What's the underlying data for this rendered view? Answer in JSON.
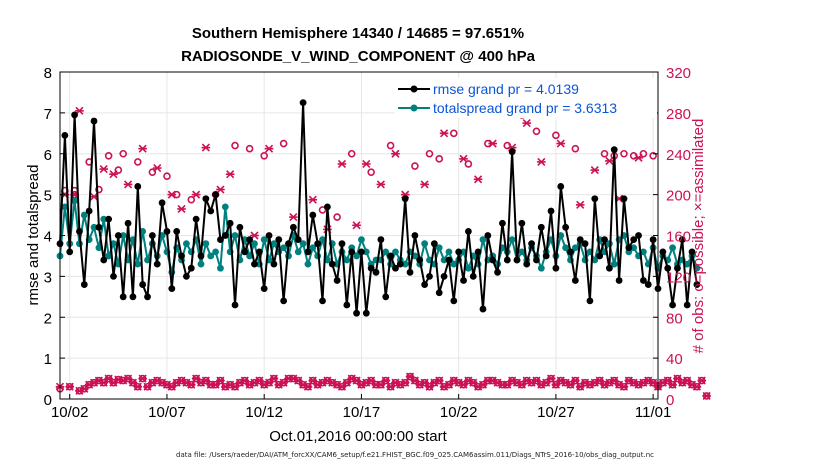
{
  "chart_data": {
    "type": "line",
    "title_line1": "Southern Hemisphere 14340 / 14685 = 97.651%",
    "title_line2": "RADIOSONDE_V_WIND_COMPONENT @ 400 hPa",
    "xlabel": "Oct.01,2016 00:00:00 start",
    "ylabel_left": "rmse and totalspread",
    "ylabel_right": "# of obs: o=possible; ×=assimilated",
    "ylim_left": [
      0,
      8
    ],
    "ylim_right": [
      0,
      320
    ],
    "yticks_left": [
      "0",
      "1",
      "2",
      "3",
      "4",
      "5",
      "6",
      "7",
      "8"
    ],
    "yticks_right": [
      "0",
      "40",
      "80",
      "120",
      "160",
      "200",
      "240",
      "280",
      "320"
    ],
    "xticks": [
      {
        "day": 2,
        "label": "10/02"
      },
      {
        "day": 7,
        "label": "10/07"
      },
      {
        "day": 12,
        "label": "10/12"
      },
      {
        "day": 17,
        "label": "10/17"
      },
      {
        "day": 22,
        "label": "10/22"
      },
      {
        "day": 27,
        "label": "10/27"
      },
      {
        "day": 32,
        "label": "11/01"
      }
    ],
    "xlim_days": [
      1.5,
      32.25
    ],
    "x_start_day": 1.5,
    "x_step_days": 0.25,
    "grid": true,
    "legend_position": "top-right",
    "series": [
      {
        "name": "rmse",
        "legend": "rmse grand pr = 4.0139",
        "color": "#000000",
        "values": [
          3.8,
          6.45,
          3.6,
          6.95,
          4.1,
          2.8,
          4.6,
          6.8,
          4.2,
          3.4,
          4.4,
          3.0,
          4.0,
          2.5,
          4.3,
          2.5,
          5.2,
          2.8,
          2.5,
          4.0,
          3.3,
          4.8,
          4.1,
          2.7,
          4.1,
          3.5,
          3.0,
          3.2,
          4.4,
          3.5,
          4.9,
          4.6,
          5.0,
          3.9,
          4.0,
          4.3,
          2.3,
          4.2,
          3.6,
          3.9,
          3.3,
          3.6,
          2.7,
          4.0,
          3.3,
          3.9,
          2.4,
          3.8,
          4.2,
          3.9,
          7.25,
          3.6,
          4.5,
          3.8,
          2.4,
          4.7,
          3.3,
          2.9,
          3.8,
          2.3,
          3.6,
          2.1,
          3.6,
          2.1,
          3.2,
          3.1,
          3.9,
          2.5,
          3.5,
          3.2,
          3.3,
          4.9,
          3.1,
          4.0,
          3.4,
          2.8,
          3.0,
          3.8,
          2.6,
          3.0,
          3.4,
          2.4,
          3.6,
          2.9,
          4.1,
          3.0,
          3.6,
          2.2,
          4.0,
          3.4,
          3.1,
          4.3,
          3.4,
          6.05,
          3.4,
          4.3,
          3.3,
          3.8,
          3.4,
          4.2,
          3.5,
          4.6,
          3.2,
          5.2,
          4.2,
          3.6,
          2.9,
          3.9,
          3.8,
          2.4,
          4.9,
          3.5,
          3.9,
          3.2,
          6.1,
          2.9,
          4.9,
          3.7,
          3.9,
          4.0,
          2.9,
          2.8,
          3.9,
          2.7,
          3.6,
          3.2,
          2.3,
          3.2,
          3.9,
          2.3,
          3.6,
          2.8
        ]
      },
      {
        "name": "totalspread",
        "legend": "totalspread grand pr = 3.6313",
        "color": "#00817f",
        "values": [
          3.5,
          4.7,
          3.8,
          4.85,
          3.8,
          4.5,
          3.9,
          4.2,
          3.7,
          4.4,
          3.5,
          3.8,
          3.3,
          4.0,
          3.4,
          3.9,
          3.3,
          4.1,
          3.4,
          3.8,
          3.5,
          4.0,
          3.6,
          3.1,
          3.7,
          3.4,
          3.8,
          3.6,
          3.9,
          3.3,
          3.8,
          3.5,
          3.6,
          3.2,
          4.7,
          3.6,
          4.0,
          3.4,
          3.9,
          3.5,
          3.8,
          3.3,
          3.9,
          3.4,
          3.8,
          3.6,
          3.7,
          3.5,
          4.0,
          3.6,
          3.8,
          3.3,
          3.7,
          3.5,
          3.9,
          3.4,
          3.8,
          3.3,
          3.6,
          3.4,
          3.7,
          3.5,
          3.9,
          3.6,
          3.3,
          3.4,
          3.4,
          3.6,
          3.3,
          3.6,
          3.4,
          3.3,
          3.6,
          3.5,
          3.3,
          3.8,
          3.4,
          3.3,
          3.7,
          3.4,
          3.6,
          3.3,
          3.4,
          3.6,
          3.2,
          3.5,
          3.3,
          3.9,
          3.4,
          3.5,
          3.3,
          3.7,
          3.6,
          3.9,
          3.4,
          3.6,
          3.4,
          3.7,
          3.5,
          3.2,
          3.6,
          3.9,
          3.5,
          4.0,
          3.7,
          3.4,
          3.7,
          3.8,
          3.4,
          3.6,
          3.4,
          3.9,
          3.6,
          3.8,
          3.3,
          3.9,
          4.0,
          3.6,
          3.7,
          3.5,
          3.6,
          3.3,
          3.7,
          3.2,
          3.5,
          3.4,
          3.7,
          3.3,
          3.4,
          3.3,
          3.5,
          3.2
        ]
      },
      {
        "name": "possible",
        "axis": "right",
        "marker": "o",
        "color": "#cc1155",
        "values": [
          10,
          204,
          12,
          204,
          8,
          10,
          14,
          16,
          18,
          16,
          20,
          16,
          19,
          18,
          20,
          16,
          12,
          20,
          12,
          16,
          18,
          16,
          14,
          12,
          16,
          18,
          16,
          14,
          20,
          16,
          18,
          14,
          14,
          18,
          12,
          14,
          12,
          16,
          18,
          14,
          16,
          18,
          14,
          16,
          20,
          14,
          16,
          20,
          20,
          18,
          14,
          12,
          18,
          14,
          16,
          18,
          16,
          14,
          12,
          16,
          20,
          18,
          14,
          16,
          18,
          14,
          14,
          18,
          12,
          16,
          14,
          16,
          22,
          18,
          14,
          16,
          12,
          16,
          18,
          12,
          14,
          18,
          16,
          14,
          18,
          16,
          12,
          14,
          18,
          18,
          16,
          14,
          14,
          18,
          16,
          14,
          18,
          16,
          18,
          14,
          16,
          20,
          14,
          18,
          16,
          14,
          18,
          12,
          16,
          14,
          16,
          18,
          14,
          16,
          18,
          14,
          12,
          18,
          16,
          14,
          16,
          18,
          16,
          12,
          16,
          18,
          14,
          20,
          16,
          18,
          14,
          12,
          18,
          3
        ]
      },
      {
        "name": "assimilated",
        "axis": "right",
        "marker": "x",
        "color": "#cc1155",
        "values": [
          12,
          200,
          12,
          200,
          8,
          10,
          14,
          16,
          18,
          16,
          20,
          16,
          19,
          18,
          20,
          16,
          12,
          20,
          12,
          16,
          18,
          16,
          14,
          12,
          16,
          18,
          16,
          14,
          20,
          16,
          18,
          14,
          14,
          18,
          12,
          14,
          12,
          16,
          18,
          14,
          16,
          18,
          14,
          16,
          20,
          14,
          16,
          20,
          20,
          18,
          14,
          12,
          18,
          14,
          16,
          18,
          16,
          14,
          12,
          16,
          20,
          18,
          14,
          16,
          18,
          14,
          14,
          18,
          12,
          16,
          14,
          16,
          22,
          18,
          14,
          16,
          12,
          16,
          18,
          12,
          14,
          18,
          16,
          14,
          18,
          16,
          12,
          14,
          18,
          18,
          16,
          14,
          14,
          18,
          16,
          14,
          18,
          16,
          18,
          14,
          16,
          20,
          14,
          18,
          16,
          14,
          18,
          12,
          16,
          14,
          16,
          18,
          14,
          16,
          18,
          14,
          12,
          18,
          16,
          14,
          16,
          18,
          16,
          12,
          16,
          18,
          14,
          20,
          16,
          18,
          14,
          12,
          18,
          3
        ]
      },
      {
        "name": "possible_high",
        "axis": "right",
        "marker": "o",
        "color": "#cc1155",
        "days": [
          2.25,
          3.0,
          3.5,
          4.0,
          4.5,
          4.75,
          5.5,
          6.25,
          7.0,
          7.5,
          8.25,
          9.5,
          10.5,
          11.25,
          12.0,
          13.0,
          15.0,
          15.75,
          16.5,
          17.5,
          18.5,
          19.75,
          20.5,
          21.0,
          21.75,
          22.5,
          23.5,
          24.5,
          25.25,
          26.0,
          27.0,
          28.0,
          29.5,
          30.0,
          30.5,
          31.0,
          31.5,
          32.0
        ],
        "values": [
          200,
          232,
          205,
          238,
          224,
          240,
          232,
          222,
          218,
          200,
          195,
          200,
          248,
          245,
          238,
          250,
          185,
          178,
          240,
          222,
          248,
          228,
          240,
          235,
          260,
          230,
          250,
          248,
          278,
          262,
          258,
          245,
          240,
          238,
          240,
          238,
          240,
          238
        ]
      },
      {
        "name": "assimilated_high",
        "axis": "right",
        "marker": "x",
        "color": "#cc1155",
        "days": [
          2.5,
          3.25,
          3.75,
          4.25,
          5.0,
          5.75,
          6.5,
          7.25,
          7.75,
          8.5,
          9.0,
          9.75,
          10.25,
          11.5,
          12.25,
          13.5,
          14.5,
          15.25,
          16.0,
          16.75,
          17.25,
          18.0,
          18.75,
          19.25,
          20.25,
          21.25,
          22.25,
          23.0,
          23.75,
          24.75,
          25.5,
          26.25,
          27.25,
          28.25,
          29.0,
          29.75,
          30.25,
          31.25
        ],
        "values": [
          282,
          198,
          225,
          220,
          210,
          245,
          226,
          200,
          186,
          200,
          246,
          205,
          220,
          160,
          245,
          178,
          195,
          166,
          230,
          170,
          230,
          210,
          240,
          200,
          210,
          260,
          235,
          215,
          250,
          246,
          270,
          232,
          250,
          190,
          224,
          233,
          196,
          236
        ]
      }
    ]
  },
  "footnote": "data file: /Users/raeder/DAI/ATM_forcXX/CAM6_setup/f.e21.FHIST_BGC.f09_025.CAM6assim.011/Diags_NTrS_2016-10/obs_diag_output.nc"
}
